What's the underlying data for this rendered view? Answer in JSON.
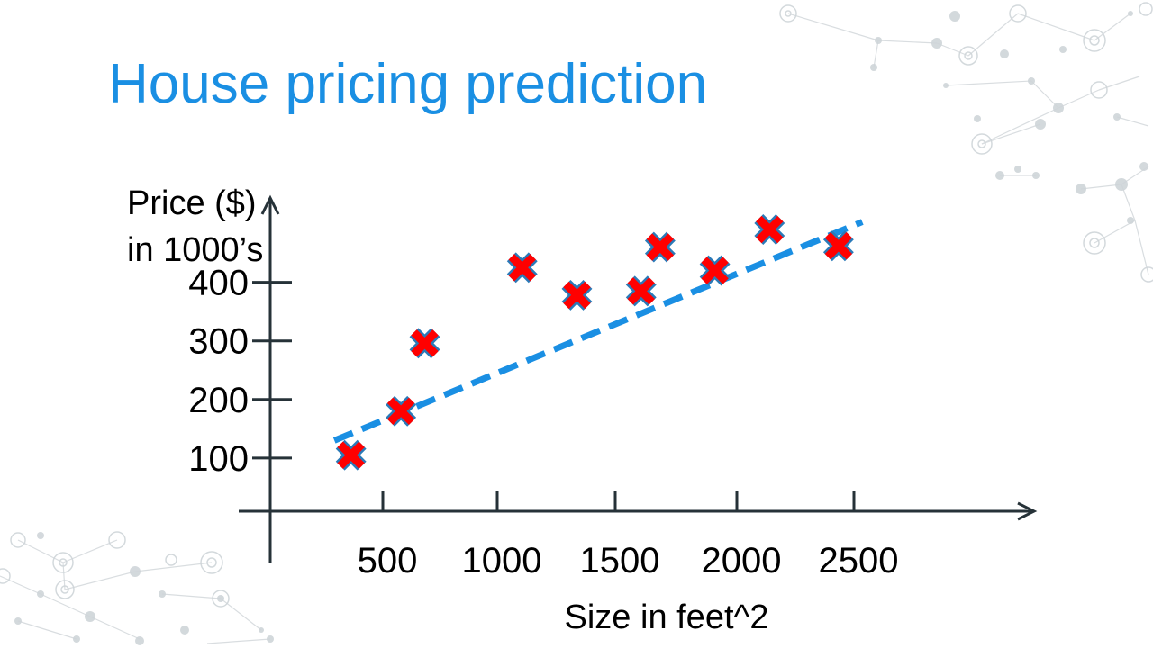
{
  "slide": {
    "title": "House pricing prediction"
  },
  "colors": {
    "title": "#1a8fe3",
    "trend_line": "#1a8fe3",
    "marker_fill": "#ff0000",
    "marker_outline": "#2a7ab8",
    "axis": "#263238"
  },
  "chart_data": {
    "type": "scatter",
    "xlabel": "Size in feet^2",
    "ylabel_lines": [
      "Price ($)",
      "in 1000’s"
    ],
    "x_ticks": [
      500,
      1000,
      1500,
      2000,
      2500
    ],
    "y_ticks": [
      100,
      200,
      300,
      400
    ],
    "x_tick_labels": [
      "500",
      "1000",
      "1500",
      "2000",
      "2500"
    ],
    "y_tick_labels": [
      "100",
      "200",
      "300",
      "400"
    ],
    "xlim": [
      -470,
      3360
    ],
    "ylim": [
      -5,
      500
    ],
    "grid": false,
    "marker": "x",
    "points": [
      {
        "x": 370,
        "y": 105
      },
      {
        "x": 580,
        "y": 180
      },
      {
        "x": 680,
        "y": 296
      },
      {
        "x": 1090,
        "y": 425
      },
      {
        "x": 1320,
        "y": 378
      },
      {
        "x": 1590,
        "y": 385
      },
      {
        "x": 1670,
        "y": 460
      },
      {
        "x": 1900,
        "y": 420
      },
      {
        "x": 2130,
        "y": 490
      },
      {
        "x": 2420,
        "y": 462
      }
    ],
    "trend_line": {
      "style": "dashed",
      "x": [
        300,
        2520
      ],
      "y": [
        130,
        503
      ]
    }
  }
}
